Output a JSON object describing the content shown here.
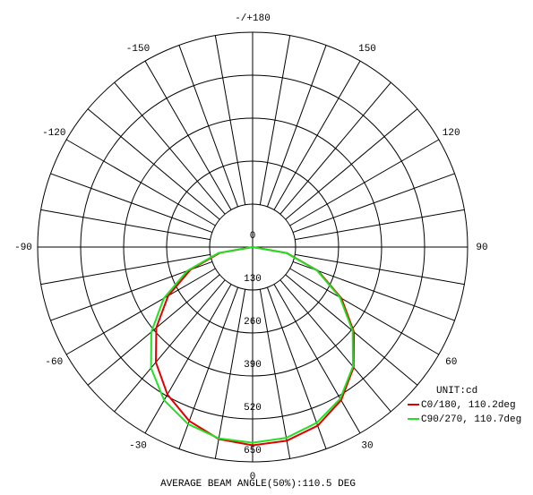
{
  "chart_data": {
    "type": "polar",
    "unit": "UNIT:cd",
    "footer": "AVERAGE BEAM ANGLE(50%):110.5 DEG",
    "x": [
      -90,
      -80,
      -70,
      -60,
      -50,
      -40,
      -30,
      -20,
      -10,
      0,
      10,
      20,
      30,
      40,
      50,
      60,
      70,
      80,
      90
    ],
    "series": [
      {
        "name": "C0/180, 110.2deg",
        "color": "#e00000",
        "values": [
          0,
          100,
          200,
          295,
          380,
          455,
          515,
          560,
          590,
          600,
          595,
          575,
          535,
          475,
          400,
          310,
          210,
          105,
          0
        ]
      },
      {
        "name": "C90/270, 110.7deg",
        "color": "#22e022",
        "values": [
          0,
          105,
          210,
          310,
          400,
          478,
          535,
          570,
          588,
          592,
          586,
          566,
          530,
          472,
          395,
          305,
          207,
          103,
          0
        ]
      }
    ],
    "rlim": [
      0,
      650
    ],
    "rticks": [
      0,
      130,
      260,
      390,
      520,
      650
    ],
    "xticks": [
      0,
      30,
      60,
      90,
      120,
      150,
      {
        "value": 180,
        "label": "-/+180"
      },
      -150,
      -120,
      -90,
      -60,
      -30
    ]
  }
}
